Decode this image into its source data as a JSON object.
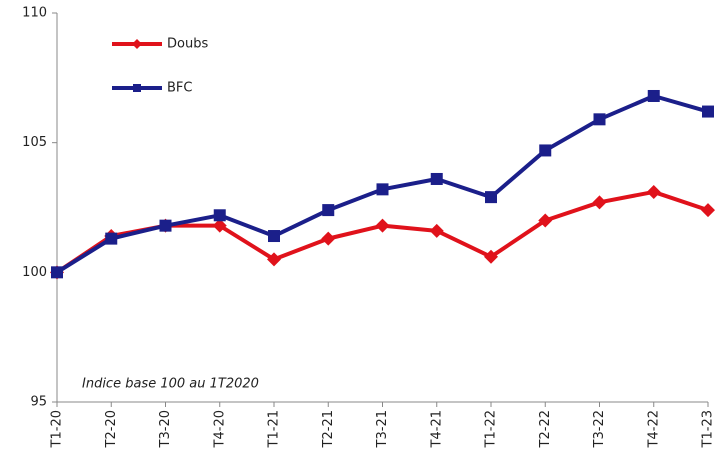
{
  "chart_data": {
    "type": "line",
    "categories": [
      "T1-20",
      "T2-20",
      "T3-20",
      "T4-20",
      "T1-21",
      "T2-21",
      "T3-21",
      "T4-21",
      "T1-22",
      "T2-22",
      "T3-22",
      "T4-22",
      "T1-23"
    ],
    "series": [
      {
        "name": "Doubs",
        "color": "#e0121b",
        "marker": "diamond",
        "values": [
          100,
          101.4,
          101.8,
          101.8,
          100.5,
          101.3,
          101.8,
          101.6,
          100.6,
          102.0,
          102.7,
          103.1,
          102.4
        ]
      },
      {
        "name": "BFC",
        "color": "#1b1f8a",
        "marker": "square",
        "values": [
          100,
          101.3,
          101.8,
          102.2,
          101.4,
          102.4,
          103.2,
          103.6,
          102.9,
          104.7,
          105.9,
          106.8,
          106.2
        ]
      }
    ],
    "annotation": "Indice base 100 au 1T2020",
    "ylim": [
      95,
      110
    ],
    "yticks": [
      95,
      100,
      105,
      110
    ],
    "grid": false,
    "legend": "upper left"
  }
}
